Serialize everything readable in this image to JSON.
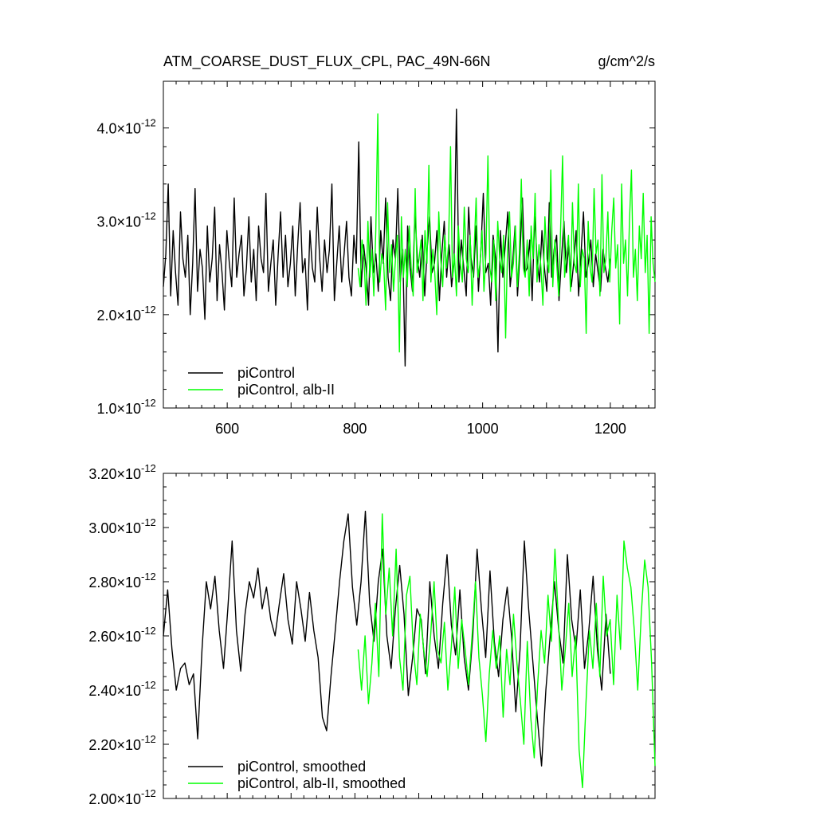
{
  "chart_data": [
    {
      "type": "line",
      "title_left": "ATM_COARSE_DUST_FLUX_CPL, PAC_49N-66N",
      "title_right": "g/cm^2/s",
      "xlim": [
        500,
        1270
      ],
      "ylim": [
        1e-12,
        4.5e-12
      ],
      "x_ticks": [
        600,
        800,
        1000,
        1200
      ],
      "x_tick_labels": [
        "600",
        "800",
        "1000",
        "1200"
      ],
      "y_ticks": [
        {
          "mantissa": "1.0",
          "exp": "-12",
          "value": 1e-12
        },
        {
          "mantissa": "2.0",
          "exp": "-12",
          "value": 2e-12
        },
        {
          "mantissa": "3.0",
          "exp": "-12",
          "value": 3e-12
        },
        {
          "mantissa": "4.0",
          "exp": "-12",
          "value": 4e-12
        }
      ],
      "grid": false,
      "legend_position": "bottom-left",
      "series": [
        {
          "name": "piControl",
          "color": "#000000",
          "x_range": [
            500,
            1200
          ],
          "values": [
            2.3,
            2.65,
            3.4,
            2.2,
            2.9,
            2.45,
            2.1,
            3.1,
            2.6,
            2.4,
            2.85,
            2.0,
            2.55,
            3.35,
            2.25,
            2.7,
            2.5,
            1.95,
            2.95,
            2.35,
            2.6,
            3.15,
            2.15,
            2.75,
            2.45,
            2.05,
            2.9,
            2.55,
            2.3,
            3.25,
            2.4,
            2.65,
            2.85,
            2.2,
            2.5,
            3.05,
            2.35,
            2.7,
            2.15,
            2.95,
            2.6,
            2.45,
            3.3,
            2.25,
            2.55,
            2.8,
            2.1,
            2.65,
            3.1,
            2.4,
            2.85,
            2.3,
            2.55,
            2.95,
            2.2,
            2.75,
            3.2,
            2.45,
            2.6,
            2.05,
            2.9,
            2.5,
            2.35,
            3.15,
            2.6,
            2.25,
            2.8,
            2.45,
            2.7,
            3.4,
            2.15,
            2.55,
            2.95,
            2.35,
            2.65,
            3.0,
            2.4,
            2.2,
            2.85,
            2.55,
            3.85,
            2.3,
            2.75,
            2.5,
            2.1,
            3.05,
            2.45,
            2.65,
            2.25,
            2.9,
            2.55,
            3.25,
            2.4,
            2.15,
            2.8,
            2.6,
            3.35,
            2.35,
            2.7,
            1.45,
            2.95,
            2.5,
            2.25,
            3.1,
            2.6,
            2.4,
            2.85,
            2.2,
            2.7,
            3.05,
            2.45,
            2.55,
            2.9,
            2.15,
            2.65,
            3.0,
            2.4,
            2.75,
            2.3,
            2.55,
            4.2,
            2.35,
            2.8,
            2.5,
            2.2,
            3.15,
            2.6,
            2.4,
            2.95,
            2.25,
            2.7,
            3.3,
            2.45,
            2.55,
            2.1,
            2.85,
            2.6,
            1.6,
            2.9,
            2.4,
            2.75,
            3.1,
            2.3,
            2.55,
            2.95,
            2.2,
            2.65,
            3.25,
            2.45,
            2.5,
            2.8,
            2.15,
            3.05,
            2.6,
            2.35,
            2.9,
            2.5,
            2.25,
            3.2,
            2.4,
            2.7,
            2.85,
            2.15,
            2.6,
            3.0,
            2.45,
            2.75,
            2.3,
            2.55,
            2.9,
            2.2,
            2.65,
            3.1,
            2.4,
            2.55,
            2.8,
            2.3,
            2.65,
            2.45,
            2.25,
            2.7,
            2.5,
            2.35,
            2.6
          ]
        },
        {
          "name": "piControl, alb-II",
          "color": "#00ff00",
          "x_range": [
            805,
            1270
          ],
          "values": [
            2.5,
            2.3,
            2.8,
            2.6,
            2.1,
            3.0,
            2.4,
            2.7,
            2.2,
            2.9,
            4.15,
            2.35,
            2.65,
            2.55,
            2.05,
            3.2,
            2.45,
            2.75,
            2.25,
            2.6,
            2.85,
            1.6,
            3.05,
            2.4,
            2.7,
            2.3,
            2.95,
            2.5,
            2.2,
            3.35,
            2.45,
            2.6,
            2.8,
            2.15,
            2.9,
            2.55,
            3.6,
            2.35,
            2.7,
            2.45,
            2.0,
            3.1,
            2.6,
            2.3,
            2.85,
            2.5,
            2.75,
            3.8,
            2.4,
            2.65,
            2.2,
            2.95,
            2.55,
            2.35,
            3.15,
            2.6,
            2.45,
            2.85,
            2.1,
            2.7,
            3.25,
            2.4,
            2.55,
            2.9,
            2.25,
            2.65,
            3.7,
            2.5,
            2.35,
            2.8,
            2.15,
            3.0,
            2.6,
            2.45,
            2.85,
            1.75,
            2.7,
            3.1,
            2.4,
            2.55,
            2.95,
            2.3,
            2.65,
            3.45,
            2.5,
            2.4,
            2.8,
            2.2,
            2.95,
            2.6,
            3.3,
            2.35,
            2.75,
            2.5,
            2.1,
            3.05,
            2.6,
            2.45,
            3.55,
            2.3,
            2.8,
            2.55,
            2.2,
            2.95,
            3.7,
            2.4,
            2.65,
            2.85,
            2.25,
            3.2,
            2.55,
            2.45,
            3.4,
            2.3,
            2.7,
            2.6,
            1.8,
            3.0,
            2.5,
            2.35,
            3.35,
            2.65,
            2.8,
            2.2,
            3.5,
            2.45,
            2.6,
            3.1,
            2.35,
            2.9,
            3.25,
            2.5,
            2.75,
            1.9,
            3.4,
            2.55,
            2.8,
            2.2,
            3.0,
            3.55,
            2.4,
            2.7,
            2.15,
            2.95,
            2.6,
            3.3,
            2.45,
            2.85,
            1.8,
            3.05,
            2.55,
            2.35
          ]
        }
      ]
    },
    {
      "type": "line",
      "xlim": [
        500,
        1270
      ],
      "ylim": [
        2e-12,
        3.2e-12
      ],
      "x_ticks": [
        600,
        800,
        1000,
        1200
      ],
      "y_ticks": [
        {
          "mantissa": "2.00",
          "exp": "-12",
          "value": 2e-12
        },
        {
          "mantissa": "2.20",
          "exp": "-12",
          "value": 2.2e-12
        },
        {
          "mantissa": "2.40",
          "exp": "-12",
          "value": 2.4e-12
        },
        {
          "mantissa": "2.60",
          "exp": "-12",
          "value": 2.6e-12
        },
        {
          "mantissa": "2.80",
          "exp": "-12",
          "value": 2.8e-12
        },
        {
          "mantissa": "3.00",
          "exp": "-12",
          "value": 3e-12
        },
        {
          "mantissa": "3.20",
          "exp": "-12",
          "value": 3.2e-12
        }
      ],
      "grid": false,
      "legend_position": "bottom-left",
      "series": [
        {
          "name": "piControl, smoothed",
          "color": "#000000",
          "x_range": [
            500,
            1200
          ],
          "values": [
            2.6,
            2.77,
            2.55,
            2.4,
            2.48,
            2.5,
            2.42,
            2.46,
            2.22,
            2.55,
            2.8,
            2.7,
            2.82,
            2.62,
            2.48,
            2.7,
            2.95,
            2.62,
            2.47,
            2.68,
            2.8,
            2.74,
            2.85,
            2.7,
            2.78,
            2.66,
            2.6,
            2.72,
            2.83,
            2.66,
            2.57,
            2.8,
            2.7,
            2.58,
            2.76,
            2.62,
            2.52,
            2.3,
            2.25,
            2.45,
            2.62,
            2.8,
            2.95,
            3.05,
            2.78,
            2.64,
            2.8,
            3.06,
            2.72,
            2.58,
            2.8,
            2.92,
            2.6,
            2.48,
            2.7,
            2.86,
            2.68,
            2.38,
            2.52,
            2.7,
            2.66,
            2.46,
            2.8,
            2.6,
            2.48,
            2.72,
            2.9,
            2.64,
            2.53,
            2.77,
            2.52,
            2.4,
            2.6,
            2.92,
            2.7,
            2.52,
            2.84,
            2.58,
            2.45,
            2.66,
            2.78,
            2.6,
            2.32,
            2.55,
            2.95,
            2.7,
            2.5,
            2.3,
            2.12,
            2.4,
            2.6,
            2.8,
            2.62,
            2.5,
            2.9,
            2.66,
            2.55,
            2.77,
            2.48,
            2.62,
            2.82,
            2.55,
            2.4,
            2.68,
            2.46
          ]
        },
        {
          "name": "piControl, alb-II, smoothed",
          "color": "#00ff00",
          "x_range": [
            805,
            1270
          ],
          "values": [
            2.55,
            2.4,
            2.6,
            2.35,
            2.5,
            2.72,
            2.45,
            3.05,
            2.68,
            2.85,
            2.6,
            2.92,
            2.52,
            2.4,
            2.75,
            2.82,
            2.55,
            2.42,
            2.68,
            2.55,
            2.45,
            2.6,
            2.8,
            2.55,
            2.5,
            2.65,
            2.4,
            2.56,
            2.78,
            2.48,
            2.66,
            2.55,
            2.42,
            2.6,
            2.8,
            2.52,
            2.38,
            2.21,
            2.46,
            2.62,
            2.48,
            2.6,
            2.3,
            2.55,
            2.42,
            2.68,
            2.5,
            2.36,
            2.2,
            2.58,
            2.3,
            2.15,
            2.42,
            2.62,
            2.5,
            2.75,
            2.58,
            2.92,
            2.66,
            2.4,
            2.55,
            2.72,
            2.45,
            2.6,
            2.18,
            2.04,
            2.35,
            2.62,
            2.48,
            2.72,
            2.45,
            2.82,
            2.6,
            2.66,
            2.42,
            2.75,
            2.55,
            2.95,
            2.85,
            2.78,
            2.62,
            2.4,
            2.68,
            2.88,
            2.78,
            2.5,
            2.12
          ]
        }
      ]
    }
  ]
}
